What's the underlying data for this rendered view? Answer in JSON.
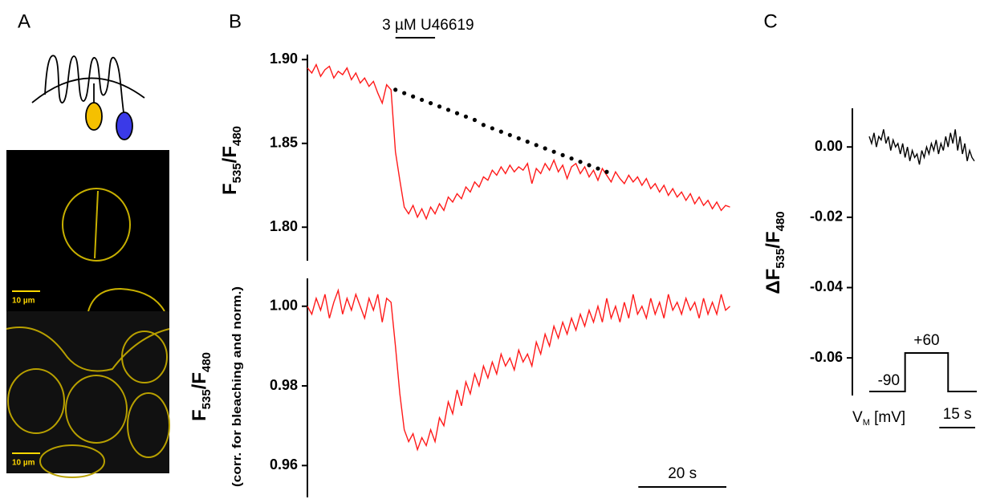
{
  "panel_a": {
    "label": "A",
    "scale_bars": [
      "10 µm",
      "10 µm"
    ]
  },
  "chart_data": [
    {
      "type": "line",
      "panel_label": "B",
      "ylabel": [
        "F",
        "535",
        "/F",
        "480"
      ],
      "annotation": {
        "text": "3 µM U46619",
        "start": 20,
        "end": 29
      },
      "xlim": [
        0,
        97
      ],
      "ylim": [
        1.78,
        1.903
      ],
      "yticks": [
        {
          "value": 1.9,
          "label": "1.90"
        },
        1.85,
        {
          "value": 1.8,
          "label": "1.80"
        }
      ],
      "x": [
        0,
        1,
        2,
        3,
        4,
        5,
        6,
        7,
        8,
        9,
        10,
        11,
        12,
        13,
        14,
        15,
        16,
        17,
        18,
        19,
        20,
        21,
        22,
        23,
        24,
        25,
        26,
        27,
        28,
        29,
        30,
        31,
        32,
        33,
        34,
        35,
        36,
        37,
        38,
        39,
        40,
        41,
        42,
        43,
        44,
        45,
        46,
        47,
        48,
        49,
        50,
        51,
        52,
        53,
        54,
        55,
        56,
        57,
        58,
        59,
        60,
        61,
        62,
        63,
        64,
        65,
        66,
        67,
        68,
        69,
        70,
        71,
        72,
        73,
        74,
        75,
        76,
        77,
        78,
        79,
        80,
        81,
        82,
        83,
        84,
        85,
        86,
        87,
        88,
        89,
        90,
        91,
        92,
        93,
        94,
        95,
        96
      ],
      "series": [
        {
          "color": "#ff1a1a",
          "values": [
            1.895,
            1.892,
            1.897,
            1.89,
            1.894,
            1.896,
            1.889,
            1.893,
            1.891,
            1.895,
            1.888,
            1.892,
            1.886,
            1.889,
            1.884,
            1.887,
            1.88,
            1.874,
            1.885,
            1.882,
            1.845,
            1.828,
            1.812,
            1.808,
            1.813,
            1.806,
            1.811,
            1.805,
            1.812,
            1.808,
            1.814,
            1.81,
            1.818,
            1.815,
            1.82,
            1.817,
            1.824,
            1.821,
            1.827,
            1.824,
            1.83,
            1.828,
            1.834,
            1.831,
            1.836,
            1.832,
            1.837,
            1.833,
            1.836,
            1.834,
            1.838,
            1.826,
            1.835,
            1.832,
            1.838,
            1.834,
            1.84,
            1.833,
            1.837,
            1.829,
            1.836,
            1.838,
            1.832,
            1.836,
            1.83,
            1.834,
            1.828,
            1.835,
            1.831,
            1.827,
            1.833,
            1.829,
            1.826,
            1.831,
            1.827,
            1.83,
            1.825,
            1.829,
            1.823,
            1.826,
            1.821,
            1.825,
            1.819,
            1.823,
            1.818,
            1.821,
            1.816,
            1.82,
            1.814,
            1.818,
            1.813,
            1.816,
            1.811,
            1.815,
            1.81,
            1.813,
            1.812
          ]
        },
        {
          "color": "#000000",
          "style": "dotted",
          "x": [
            20,
            22,
            24,
            26,
            28,
            30,
            32,
            34,
            36,
            38,
            40,
            42,
            44,
            46,
            48,
            50,
            52,
            54,
            56,
            58,
            60,
            62,
            64,
            66,
            68
          ],
          "values": [
            1.882,
            1.88,
            1.878,
            1.876,
            1.874,
            1.872,
            1.87,
            1.868,
            1.866,
            1.864,
            1.861,
            1.859,
            1.857,
            1.855,
            1.853,
            1.851,
            1.849,
            1.847,
            1.845,
            1.843,
            1.841,
            1.839,
            1.837,
            1.835,
            1.833
          ]
        }
      ]
    },
    {
      "type": "line",
      "ylabel": [
        "F",
        "535",
        "/F",
        "480"
      ],
      "ylabel_note": "(corr. for bleaching  and norm.)",
      "scale_bar": {
        "value": 20,
        "label": "20 s"
      },
      "xlim": [
        0,
        97
      ],
      "ylim": [
        0.952,
        1.007
      ],
      "yticks": [
        {
          "value": 1.0,
          "label": "1.00"
        },
        0.98,
        0.96
      ],
      "x": [
        0,
        1,
        2,
        3,
        4,
        5,
        6,
        7,
        8,
        9,
        10,
        11,
        12,
        13,
        14,
        15,
        16,
        17,
        18,
        19,
        20,
        21,
        22,
        23,
        24,
        25,
        26,
        27,
        28,
        29,
        30,
        31,
        32,
        33,
        34,
        35,
        36,
        37,
        38,
        39,
        40,
        41,
        42,
        43,
        44,
        45,
        46,
        47,
        48,
        49,
        50,
        51,
        52,
        53,
        54,
        55,
        56,
        57,
        58,
        59,
        60,
        61,
        62,
        63,
        64,
        65,
        66,
        67,
        68,
        69,
        70,
        71,
        72,
        73,
        74,
        75,
        76,
        77,
        78,
        79,
        80,
        81,
        82,
        83,
        84,
        85,
        86,
        87,
        88,
        89,
        90,
        91,
        92,
        93,
        94,
        95,
        96
      ],
      "series": [
        {
          "color": "#ff1a1a",
          "values": [
            1.0,
            0.998,
            1.002,
            0.999,
            1.003,
            0.997,
            1.001,
            1.004,
            0.998,
            1.002,
            0.999,
            1.003,
            1.0,
            0.997,
            1.002,
            0.999,
            1.003,
            0.996,
            1.002,
            1.001,
            0.99,
            0.978,
            0.969,
            0.966,
            0.968,
            0.964,
            0.967,
            0.965,
            0.969,
            0.966,
            0.972,
            0.97,
            0.976,
            0.973,
            0.979,
            0.975,
            0.981,
            0.978,
            0.983,
            0.98,
            0.985,
            0.982,
            0.986,
            0.983,
            0.988,
            0.985,
            0.987,
            0.984,
            0.989,
            0.986,
            0.988,
            0.985,
            0.991,
            0.988,
            0.993,
            0.99,
            0.995,
            0.992,
            0.996,
            0.993,
            0.997,
            0.994,
            0.998,
            0.995,
            0.999,
            0.996,
            1.0,
            0.996,
            1.002,
            0.997,
            1.0,
            0.996,
            1.001,
            0.997,
            1.003,
            0.998,
            1.0,
            0.997,
            1.002,
            0.998,
            1.001,
            0.997,
            1.003,
            0.999,
            1.001,
            0.998,
            1.002,
            0.999,
            1.001,
            0.997,
            1.002,
            0.998,
            1.001,
            0.998,
            1.003,
            0.999,
            1.0
          ]
        }
      ]
    },
    {
      "type": "line",
      "panel_label": "C",
      "ylabel": [
        "ΔF",
        "535",
        "/F",
        "480"
      ],
      "scale_bar": {
        "value": 15,
        "label": "15 s"
      },
      "voltage_step": {
        "start": 15,
        "end": 33,
        "labels": [
          "-90",
          "+60"
        ],
        "axis_label": [
          "V",
          "M",
          " [mV]"
        ]
      },
      "xlim": [
        0,
        45
      ],
      "ylim": [
        -0.0707,
        0.011
      ],
      "yticks": [
        {
          "value": 0,
          "label": "0.00"
        },
        -0.02,
        -0.04,
        -0.06
      ],
      "x": [
        0,
        1,
        2,
        3,
        4,
        5,
        6,
        7,
        8,
        9,
        10,
        11,
        12,
        13,
        14,
        15,
        16,
        17,
        18,
        19,
        20,
        21,
        22,
        23,
        24,
        25,
        26,
        27,
        28,
        29,
        30,
        31,
        32,
        33,
        34,
        35,
        36,
        37,
        38,
        39,
        40,
        41,
        42,
        43,
        44
      ],
      "series": [
        {
          "color": "#000000",
          "values": [
            0.003,
            0.001,
            0.004,
            0.0,
            0.003,
            0.002,
            0.005,
            0.001,
            0.003,
            -0.001,
            0.002,
            0.0,
            0.001,
            -0.002,
            0.001,
            -0.003,
            0.0,
            -0.004,
            -0.001,
            -0.003,
            -0.002,
            -0.005,
            -0.001,
            -0.003,
            0.0,
            -0.002,
            0.001,
            -0.001,
            0.002,
            -0.002,
            0.001,
            -0.001,
            0.003,
            0.0,
            0.004,
            0.001,
            0.005,
            -0.001,
            0.003,
            -0.002,
            0.001,
            -0.004,
            -0.001,
            -0.003,
            -0.004
          ]
        }
      ]
    }
  ]
}
